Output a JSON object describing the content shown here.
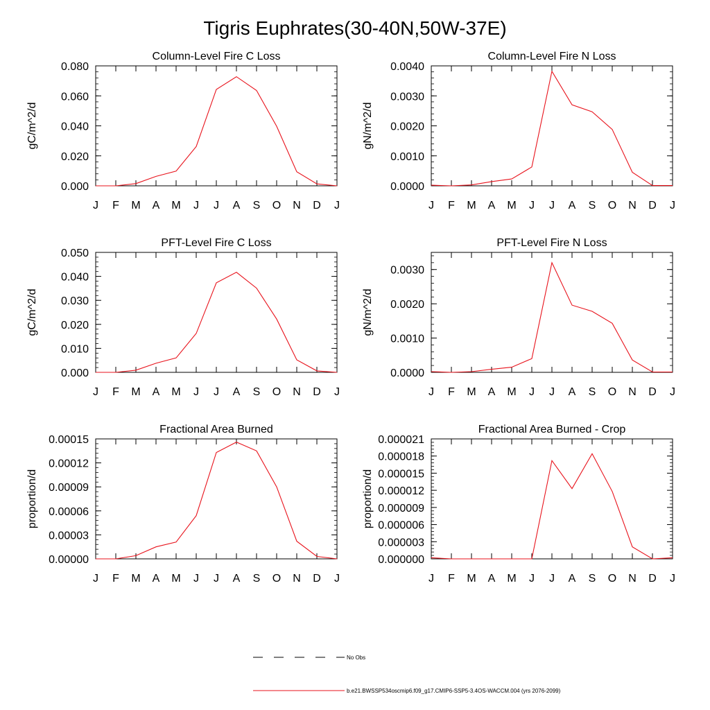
{
  "figure": {
    "title": "Tigris Euphrates(30-40N,50W-37E)"
  },
  "chart_data": [
    {
      "type": "line",
      "title": "Column-Level Fire C Loss",
      "ylabel": "gC/m^2/d",
      "categories": [
        "J",
        "F",
        "M",
        "A",
        "M",
        "J",
        "J",
        "A",
        "S",
        "O",
        "N",
        "D",
        "J"
      ],
      "ylim": [
        0,
        0.08
      ],
      "yticks": [
        "0.000",
        "0.020",
        "0.040",
        "0.060",
        "0.080"
      ],
      "series": [
        {
          "name": "b.e21.BWSSP534oscmip6.f09_g17.CMIP6-SSP5-3.4OS-WACCM.004 (yrs 2076-2099)",
          "values": [
            0.0,
            0.0,
            0.0015,
            0.0063,
            0.0098,
            0.0262,
            0.0643,
            0.0728,
            0.0636,
            0.0397,
            0.0094,
            0.0013,
            0.0
          ]
        }
      ]
    },
    {
      "type": "line",
      "title": "Column-Level Fire N Loss",
      "ylabel": "gN/m^2/d",
      "categories": [
        "J",
        "F",
        "M",
        "A",
        "M",
        "J",
        "J",
        "A",
        "S",
        "O",
        "N",
        "D",
        "J"
      ],
      "ylim": [
        0,
        0.004
      ],
      "yticks": [
        "0.0000",
        "0.0010",
        "0.0020",
        "0.0030",
        "0.0040"
      ],
      "series": [
        {
          "name": "b.e21.BWSSP534oscmip6.f09_g17.CMIP6-SSP5-3.4OS-WACCM.004 (yrs 2076-2099)",
          "values": [
            2e-05,
            0.0,
            3e-05,
            0.00014,
            0.00023,
            0.00063,
            0.00382,
            0.0027,
            0.00247,
            0.00188,
            0.00045,
            1e-05,
            1e-05
          ]
        }
      ]
    },
    {
      "type": "line",
      "title": "PFT-Level Fire C Loss",
      "ylabel": "gC/m^2/d",
      "categories": [
        "J",
        "F",
        "M",
        "A",
        "M",
        "J",
        "J",
        "A",
        "S",
        "O",
        "N",
        "D",
        "J"
      ],
      "ylim": [
        0,
        0.05
      ],
      "yticks": [
        "0.000",
        "0.010",
        "0.020",
        "0.030",
        "0.040",
        "0.050"
      ],
      "series": [
        {
          "name": "b.e21.BWSSP534oscmip6.f09_g17.CMIP6-SSP5-3.4OS-WACCM.004 (yrs 2076-2099)",
          "values": [
            0.0,
            0.0,
            0.0009,
            0.0038,
            0.006,
            0.0162,
            0.0373,
            0.0417,
            0.0351,
            0.0222,
            0.0052,
            0.0006,
            0.0
          ]
        }
      ]
    },
    {
      "type": "line",
      "title": "PFT-Level Fire N Loss",
      "ylabel": "gN/m^2/d",
      "categories": [
        "J",
        "F",
        "M",
        "A",
        "M",
        "J",
        "J",
        "A",
        "S",
        "O",
        "N",
        "D",
        "J"
      ],
      "ylim": [
        0,
        0.0035
      ],
      "yticks": [
        "0.0000",
        "0.0010",
        "0.0020",
        "0.0030"
      ],
      "series": [
        {
          "name": "b.e21.BWSSP534oscmip6.f09_g17.CMIP6-SSP5-3.4OS-WACCM.004 (yrs 2076-2099)",
          "values": [
            2e-05,
            0.0,
            2e-05,
            9e-05,
            0.00015,
            0.0004,
            0.0032,
            0.00196,
            0.00178,
            0.00143,
            0.00036,
            1e-05,
            1e-05
          ]
        }
      ]
    },
    {
      "type": "line",
      "title": "Fractional Area Burned",
      "ylabel": "proportion/d",
      "categories": [
        "J",
        "F",
        "M",
        "A",
        "M",
        "J",
        "J",
        "A",
        "S",
        "O",
        "N",
        "D",
        "J"
      ],
      "ylim": [
        0,
        0.00015
      ],
      "yticks": [
        "0.00000",
        "0.00003",
        "0.00006",
        "0.00009",
        "0.00012",
        "0.00015"
      ],
      "series": [
        {
          "name": "b.e21.BWSSP534oscmip6.f09_g17.CMIP6-SSP5-3.4OS-WACCM.004 (yrs 2076-2099)",
          "values": [
            0.0,
            0.0,
            4e-06,
            1.5e-05,
            2.1e-05,
            5.4e-05,
            0.000133,
            0.000146,
            0.000135,
            9e-05,
            2.2e-05,
            3e-06,
            0.0
          ]
        }
      ]
    },
    {
      "type": "line",
      "title": "Fractional Area Burned - Crop",
      "ylabel": "proportion/d",
      "categories": [
        "J",
        "F",
        "M",
        "A",
        "M",
        "J",
        "J",
        "A",
        "S",
        "O",
        "N",
        "D",
        "J"
      ],
      "ylim": [
        0,
        2.1e-05
      ],
      "yticks": [
        "0.000000",
        "0.000003",
        "0.000006",
        "0.000009",
        "0.000012",
        "0.000015",
        "0.000018",
        "0.000021"
      ],
      "series": [
        {
          "name": "b.e21.BWSSP534oscmip6.f09_g17.CMIP6-SSP5-3.4OS-WACCM.004 (yrs 2076-2099)",
          "values": [
            2e-07,
            0.0,
            0.0,
            0.0,
            0.0,
            0.0,
            1.72e-05,
            1.23e-05,
            1.84e-05,
            1.18e-05,
            2.1e-06,
            0.0,
            2e-07
          ]
        }
      ]
    }
  ],
  "legend": {
    "items": [
      {
        "label": "No Obs",
        "style": "dashed",
        "color": "#000000"
      },
      {
        "label": "b.e21.BWSSP534oscmip6.f09_g17.CMIP6-SSP5-3.4OS-WACCM.004 (yrs 2076-2099)",
        "style": "solid",
        "color": "#e8121b"
      }
    ]
  },
  "colors": {
    "series": "#e8121b",
    "axes": "#000000"
  }
}
